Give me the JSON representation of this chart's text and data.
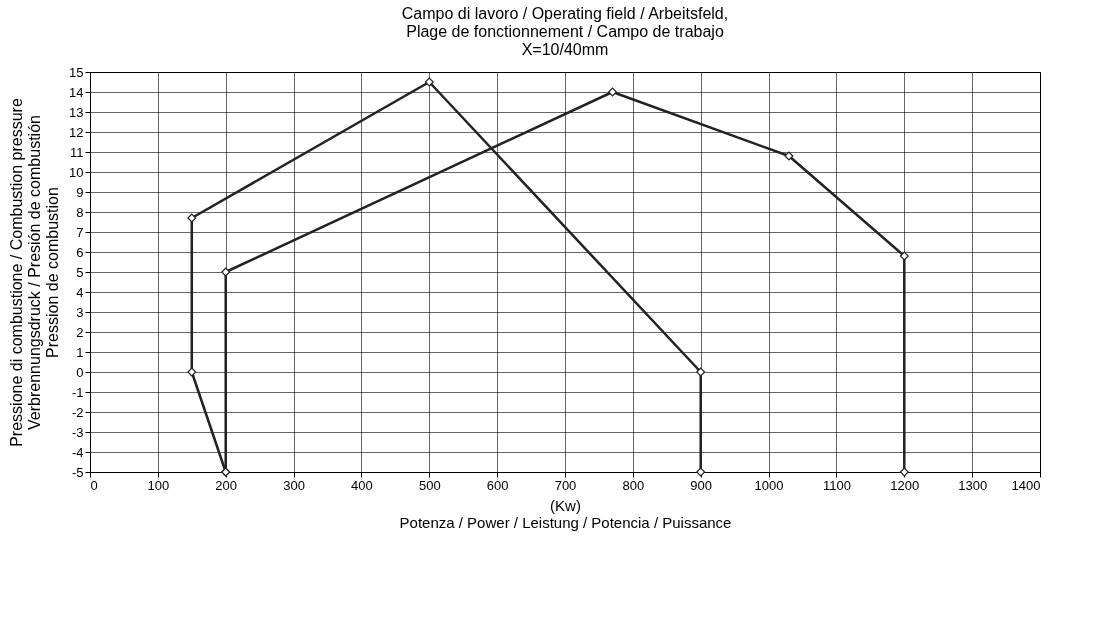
{
  "chart_data": {
    "type": "line",
    "title": "Campo di lavoro / Operating field / Arbeitsfeld,\nPlage de fonctionnement / Campo de trabajo\nX=10/40mm",
    "xlabel": "(Kw)\nPotenza / Power / Leistung / Potencia / Puissance",
    "ylabel": "Pressione di combustione / Combustion pressure\nVerbrennungsdruck / Presión de combustión\nPression de combustion",
    "xlim": [
      0,
      1400
    ],
    "xticks": [
      0,
      100,
      200,
      300,
      400,
      500,
      600,
      700,
      800,
      900,
      1000,
      1100,
      1200,
      1300,
      1400
    ],
    "ylim": [
      -5,
      15
    ],
    "yticks": [
      -5,
      -4,
      -3,
      -2,
      -1,
      0,
      1,
      2,
      3,
      4,
      5,
      6,
      7,
      8,
      9,
      10,
      11,
      12,
      13,
      14,
      15
    ],
    "grid": true,
    "marker": "diamond",
    "line_style": "solid",
    "series": [
      {
        "color": "#222222",
        "x": [
          200,
          150,
          150,
          500,
          900,
          900
        ],
        "values": [
          -5,
          0,
          7.7,
          14.5,
          0,
          -5
        ]
      },
      {
        "color": "#222222",
        "x": [
          200,
          200,
          770,
          1030,
          1200,
          1200
        ],
        "values": [
          -5,
          5,
          14,
          10.8,
          5.8,
          -5
        ]
      }
    ]
  }
}
